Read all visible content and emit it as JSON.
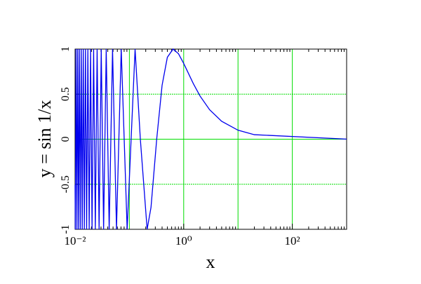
{
  "chart_data": {
    "type": "line",
    "xlabel": "x",
    "ylabel": "y = sin 1/x",
    "log_x": true,
    "grid": true,
    "grid_color": "#00dd00",
    "xlim": [
      0.01,
      1000
    ],
    "ylim": [
      -1,
      1
    ],
    "xticks": [
      {
        "value": 0.01,
        "label": "10⁻²"
      },
      {
        "value": 1,
        "label": "10⁰"
      },
      {
        "value": 100,
        "label": "10²"
      }
    ],
    "xgrid": [
      0.1,
      1,
      10,
      100,
      1000
    ],
    "yticks": [
      -1,
      -0.5,
      0,
      0.5,
      1
    ],
    "series": [
      {
        "color": "#0000ee",
        "x": [
          0.01,
          0.010105,
          0.010436,
          0.01079,
          0.011169,
          0.011575,
          0.012012,
          0.012483,
          0.012992,
          0.013545,
          0.014147,
          0.014805,
          0.015527,
          0.016324,
          0.017206,
          0.018189,
          0.019292,
          0.020536,
          0.021952,
          0.023578,
          0.025465,
          0.027679,
          0.030315,
          0.033506,
          0.037448,
          0.042441,
          0.048971,
          0.057875,
          0.070736,
          0.090946,
          0.127324,
          0.159155,
          0.212207,
          0.25,
          0.31831,
          0.4,
          0.5,
          0.63662,
          0.8,
          1,
          1.5,
          2,
          3,
          5,
          10,
          20,
          1000
        ],
        "values": [
          -0.506,
          -1,
          1,
          -1,
          1,
          -1,
          1,
          -1,
          1,
          -1,
          1,
          -1,
          1,
          -1,
          1,
          -1,
          1,
          -1,
          1,
          -1,
          1,
          -1,
          1,
          -1,
          1,
          -1,
          1,
          -1,
          1,
          -1,
          1,
          0,
          -1,
          -0.757,
          0,
          0.598,
          0.909,
          1,
          0.949,
          0.841,
          0.618,
          0.479,
          0.327,
          0.199,
          0.0998,
          0.05,
          0.001
        ]
      }
    ]
  }
}
